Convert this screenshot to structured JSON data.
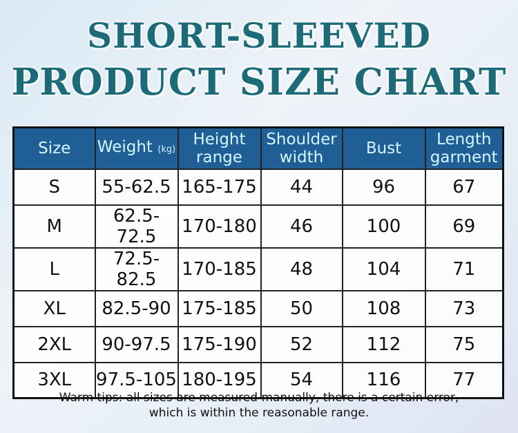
{
  "title": {
    "line1": "SHORT-SLEEVED",
    "line2": "PRODUCT SIZE CHART"
  },
  "table": {
    "headers": [
      {
        "label": "Size"
      },
      {
        "label": "Weight",
        "unit": "(kg)"
      },
      {
        "label": "Height range"
      },
      {
        "label": "Shoulder width"
      },
      {
        "label": "Bust"
      },
      {
        "label": "Length garment"
      }
    ],
    "rows": [
      [
        "S",
        "55-62.5",
        "165-175",
        "44",
        "96",
        "67"
      ],
      [
        "M",
        "62.5-72.5",
        "170-180",
        "46",
        "100",
        "69"
      ],
      [
        "L",
        "72.5-82.5",
        "170-185",
        "48",
        "104",
        "71"
      ],
      [
        "XL",
        "82.5-90",
        "175-185",
        "50",
        "108",
        "73"
      ],
      [
        "2XL",
        "90-97.5",
        "175-190",
        "52",
        "112",
        "75"
      ],
      [
        "3XL",
        "97.5-105",
        "180-195",
        "54",
        "116",
        "77"
      ]
    ]
  },
  "tips": {
    "line1": "Warm tips: all sizes are measured manually, there is a certain error,",
    "line2": "which is within the reasonable range."
  },
  "colors": {
    "header_bg": "#1f5f95",
    "header_text": "#d4f6ff",
    "title": "#1d6b78"
  }
}
